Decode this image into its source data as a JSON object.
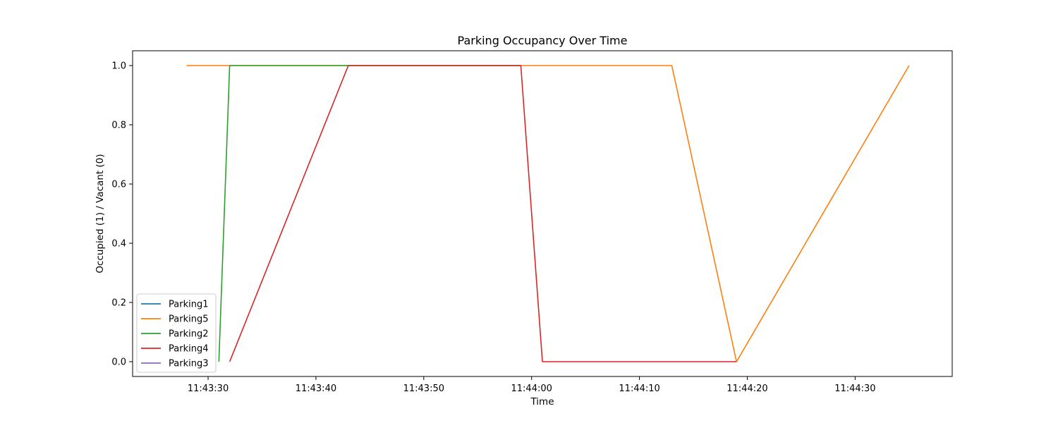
{
  "chart_data": {
    "type": "line",
    "title": "Parking Occupancy Over Time",
    "xlabel": "Time",
    "ylabel": "Occupied (1) / Vacant (0)",
    "xlim": [
      "11:43:23.0",
      "11:44:39.0"
    ],
    "ylim": [
      -0.05,
      1.05
    ],
    "x_ticks": [
      "11:43:30",
      "11:43:40",
      "11:43:50",
      "11:44:00",
      "11:44:10",
      "11:44:20",
      "11:44:30"
    ],
    "y_ticks": [
      "0.0",
      "0.2",
      "0.4",
      "0.6",
      "0.8",
      "1.0"
    ],
    "grid": false,
    "legend_position": "lower-left",
    "series": [
      {
        "name": "Parking1",
        "color": "#1f77b4",
        "points": []
      },
      {
        "name": "Parking5",
        "color": "#ff7f0e",
        "points": [
          [
            "11:43:28.0",
            1
          ],
          [
            "11:44:13.0",
            1
          ],
          [
            "11:44:19.0",
            0
          ],
          [
            "11:44:35.0",
            1
          ]
        ]
      },
      {
        "name": "Parking2",
        "color": "#2ca02c",
        "points": [
          [
            "11:43:31.0",
            0
          ],
          [
            "11:43:32.0",
            1
          ],
          [
            "11:43:43.0",
            1
          ],
          [
            "11:43:59.0",
            1
          ]
        ]
      },
      {
        "name": "Parking4",
        "color": "#d62728",
        "points": [
          [
            "11:43:32.0",
            0
          ],
          [
            "11:43:43.0",
            1
          ],
          [
            "11:43:59.0",
            1
          ],
          [
            "11:44:01.0",
            0
          ],
          [
            "11:44:19.0",
            0
          ]
        ]
      },
      {
        "name": "Parking3",
        "color": "#9467bd",
        "points": []
      }
    ]
  }
}
